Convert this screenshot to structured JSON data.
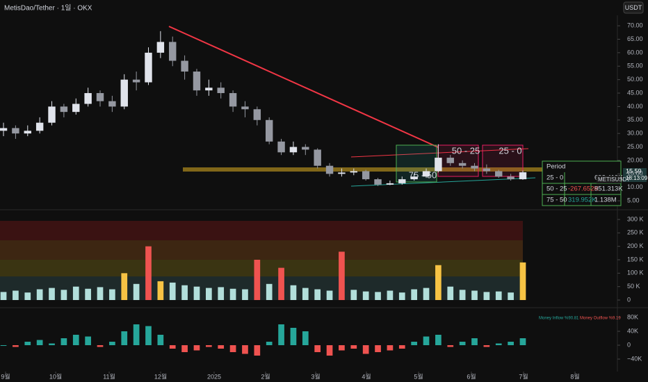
{
  "header": {
    "title": "MetisDao/Tether · 1일 · OKX",
    "currency": "USDT"
  },
  "chart_data": [
    {
      "type": "candlestick",
      "open": [
        31,
        32,
        30,
        31,
        34,
        40,
        38,
        41,
        45,
        42,
        40,
        50,
        49,
        60,
        64,
        57,
        53,
        46,
        47,
        45,
        40,
        39,
        35,
        27,
        23,
        25,
        24,
        18,
        15,
        15.5,
        16,
        13,
        11,
        11.5,
        13,
        14,
        16,
        21,
        19,
        18,
        17,
        16,
        14,
        13
      ],
      "high": [
        34,
        33,
        33,
        36,
        42,
        41,
        43,
        47,
        46,
        44,
        52,
        53,
        62,
        68,
        66,
        59,
        54,
        50,
        49,
        46,
        42,
        40,
        36,
        28,
        27,
        26,
        24.5,
        19,
        17,
        17,
        16.5,
        13.5,
        12.5,
        14,
        15,
        17,
        26,
        22,
        20,
        19,
        18.5,
        16.5,
        15,
        16.2
      ],
      "low": [
        29,
        28,
        29,
        30,
        33,
        36,
        37,
        40,
        40,
        38,
        39,
        46,
        48,
        58,
        55,
        50,
        44,
        44,
        43,
        38,
        36,
        33,
        26,
        22,
        22,
        22,
        17,
        14,
        14,
        14.5,
        12.5,
        10.5,
        10.8,
        11,
        12.5,
        13.5,
        15.5,
        18,
        17,
        16,
        15,
        13.5,
        12.5,
        12.8
      ],
      "close": [
        32,
        30,
        31,
        34,
        40,
        38,
        41,
        45,
        42,
        40,
        50,
        49,
        60,
        64,
        57,
        53,
        46,
        47,
        45,
        40,
        39,
        35,
        27,
        23,
        25,
        24,
        18,
        15,
        15.5,
        16,
        13,
        11,
        11.5,
        13,
        14,
        16,
        21,
        19,
        18,
        17,
        16,
        14,
        13,
        15.59
      ],
      "up_color": "#e0e3eb",
      "down_color": "#9598a1",
      "xlim": [
        -0.29,
        50.83
      ],
      "xticks": [
        {
          "value": 0.17,
          "label": "9월"
        },
        {
          "value": 4.32,
          "label": "10월"
        },
        {
          "value": 8.75,
          "label": "11월"
        },
        {
          "value": 13.01,
          "label": "12월"
        },
        {
          "value": 17.44,
          "label": "2025"
        },
        {
          "value": 21.7,
          "label": "2월"
        },
        {
          "value": 25.85,
          "label": "3월"
        },
        {
          "value": 30.05,
          "label": "4월"
        },
        {
          "value": 34.37,
          "label": "5월"
        },
        {
          "value": 38.74,
          "label": "6월"
        },
        {
          "value": 43.06,
          "label": "7월"
        },
        {
          "value": 47.32,
          "label": "8월"
        }
      ],
      "ylim": [
        2.7,
        73.9
      ],
      "yticks": [
        {
          "value": 70,
          "label": "70.00"
        },
        {
          "value": 65,
          "label": "65.00"
        },
        {
          "value": 60,
          "label": "60.00"
        },
        {
          "value": 55,
          "label": "55.00"
        },
        {
          "value": 50,
          "label": "50.00"
        },
        {
          "value": 45,
          "label": "45.00"
        },
        {
          "value": 40,
          "label": "40.00"
        },
        {
          "value": 35,
          "label": "35.00"
        },
        {
          "value": 30,
          "label": "30.00"
        },
        {
          "value": 25,
          "label": "25.00"
        },
        {
          "value": 20,
          "label": "20.00"
        },
        {
          "value": 15,
          "label": "15.00"
        },
        {
          "value": 10,
          "label": "10.00"
        },
        {
          "value": 5,
          "label": "5.00"
        }
      ],
      "last_price": {
        "value": 15.59,
        "timer": "18:13:09",
        "symbol": "METISUSDT"
      },
      "zones": [
        "75 - 50",
        "50 - 25",
        "25 - 0"
      ],
      "table": {
        "rows": [
          [
            "Period"
          ],
          [
            "25 - 0",
            "692.419K"
          ],
          [
            "50 - 25",
            "-267.652K",
            "951.313K"
          ],
          [
            "75 - 50",
            "319.952K",
            "1.138M"
          ]
        ]
      }
    },
    {
      "type": "bar",
      "values": [
        30000,
        35000,
        28000,
        40000,
        45000,
        38000,
        50000,
        42000,
        48000,
        40000,
        100000,
        60000,
        200000,
        70000,
        65000,
        55000,
        50000,
        45000,
        48000,
        42000,
        40000,
        150000,
        60000,
        120000,
        55000,
        45000,
        40000,
        35000,
        180000,
        38000,
        32000,
        30000,
        35000,
        28000,
        40000,
        45000,
        130000,
        50000,
        38000,
        35000,
        30000,
        32000,
        28000,
        140000
      ],
      "colors": [
        "#b2dfdb",
        "#b2dfdb",
        "#b2dfdb",
        "#b2dfdb",
        "#b2dfdb",
        "#b2dfdb",
        "#b2dfdb",
        "#b2dfdb",
        "#b2dfdb",
        "#b2dfdb",
        "#f6c344",
        "#b2dfdb",
        "#ef5350",
        "#f6c344",
        "#b2dfdb",
        "#b2dfdb",
        "#b2dfdb",
        "#b2dfdb",
        "#b2dfdb",
        "#b2dfdb",
        "#b2dfdb",
        "#ef5350",
        "#b2dfdb",
        "#ef5350",
        "#b2dfdb",
        "#b2dfdb",
        "#b2dfdb",
        "#b2dfdb",
        "#ef5350",
        "#b2dfdb",
        "#b2dfdb",
        "#b2dfdb",
        "#b2dfdb",
        "#b2dfdb",
        "#b2dfdb",
        "#b2dfdb",
        "#f6c344",
        "#b2dfdb",
        "#b2dfdb",
        "#b2dfdb",
        "#b2dfdb",
        "#b2dfdb",
        "#b2dfdb",
        "#f6c344"
      ],
      "ylim": [
        -20700,
        315500
      ],
      "yticks": [
        {
          "value": 300000,
          "label": "300 K"
        },
        {
          "value": 250000,
          "label": "250 K"
        },
        {
          "value": 200000,
          "label": "200 K"
        },
        {
          "value": 150000,
          "label": "150 K"
        },
        {
          "value": 100000,
          "label": "100 K"
        },
        {
          "value": 50000,
          "label": "50 K"
        },
        0
      ]
    },
    {
      "type": "bar",
      "values": [
        0,
        -5000,
        10000,
        15000,
        5000,
        20000,
        30000,
        25000,
        -5000,
        10000,
        40000,
        60000,
        55000,
        30000,
        -10000,
        -20000,
        -15000,
        -5000,
        -10000,
        -20000,
        -25000,
        -30000,
        10000,
        60000,
        50000,
        40000,
        -20000,
        -30000,
        -15000,
        -10000,
        -25000,
        -20000,
        -15000,
        -10000,
        10000,
        25000,
        30000,
        -5000,
        10000,
        20000,
        -5000,
        5000,
        10000,
        20000
      ],
      "up_color": "#26a69a",
      "down_color": "#ef5350",
      "legend": [
        "Money Inflow %90.81",
        "Money Outflow %9.19"
      ],
      "ylim": [
        -76000,
        100000
      ],
      "yticks": [
        {
          "value": 80000,
          "label": "80K"
        },
        {
          "value": 40000,
          "label": "40K"
        },
        0,
        {
          "value": -40000,
          "label": "−40K"
        }
      ]
    }
  ]
}
